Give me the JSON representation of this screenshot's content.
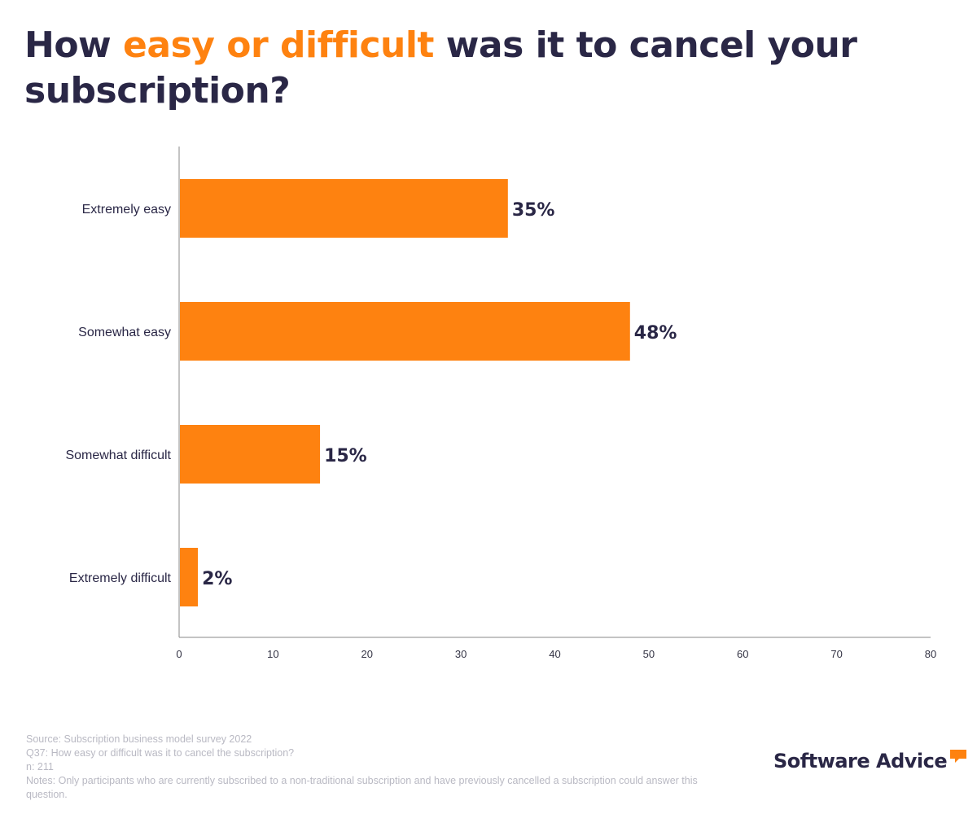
{
  "title": {
    "before": "How ",
    "highlight": "easy or difficult",
    "after": " was it to cancel your subscription?"
  },
  "colors": {
    "bar": "#fe8210",
    "title": "#2a2746",
    "accent": "#fe8210",
    "axis": "#888888",
    "label": "#2a2746",
    "footer": "#b9b9c3"
  },
  "chart_data": {
    "type": "bar",
    "orientation": "horizontal",
    "categories": [
      "Extremely easy",
      "Somewhat easy",
      "Somewhat difficult",
      "Extremely difficult"
    ],
    "values": [
      35,
      48,
      15,
      2
    ],
    "value_labels": [
      "35%",
      "48%",
      "15%",
      "2%"
    ],
    "xlim": [
      0,
      80
    ],
    "xticks": [
      0,
      10,
      20,
      30,
      40,
      50,
      60,
      70,
      80
    ],
    "title": "How easy or difficult was it to cancel your subscription?",
    "xlabel": "",
    "ylabel": "",
    "grid": false
  },
  "footer": {
    "source": "Source: Subscription business model survey 2022",
    "question": "Q37: How easy or difficult was it to cancel the subscription?",
    "n": "n: 211",
    "notes": "Notes: Only participants who are currently subscribed to a non-traditional subscription and have previously cancelled a subscription could answer this question."
  },
  "brand": {
    "name": "Software Advice",
    "logo_icon": "speech-bubble-icon"
  }
}
